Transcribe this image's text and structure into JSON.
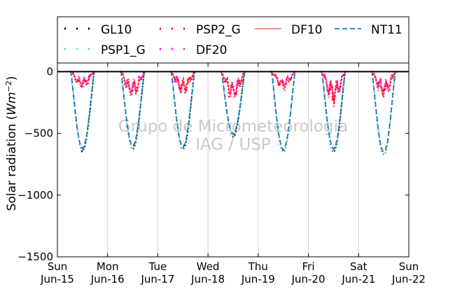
{
  "chart_data": {
    "type": "line",
    "ylabel_main": "Solar radiation (",
    "ylabel_math": "Wm",
    "ylabel_exp": "−2",
    "ylabel_close": ")",
    "ylim": [
      -1500,
      70
    ],
    "yticks": [
      0,
      -500,
      -1000,
      -1500
    ],
    "ytick_labels": [
      "0",
      "−500",
      "−1000",
      "−1500"
    ],
    "xlim": [
      "2014-06-15",
      "2014-06-22"
    ],
    "xticks": [
      {
        "day": "Sun",
        "date": "Jun-15"
      },
      {
        "day": "Mon",
        "date": "Jun-16"
      },
      {
        "day": "Tue",
        "date": "Jun-17"
      },
      {
        "day": "Wed",
        "date": "Jun-18"
      },
      {
        "day": "Thu",
        "date": "Jun-19"
      },
      {
        "day": "Fri",
        "date": "Jun-20"
      },
      {
        "day": "Sat",
        "date": "Jun-21"
      },
      {
        "day": "Sun",
        "date": "Jun-22"
      }
    ],
    "grid": "vertical",
    "legend_position": "top",
    "watermark": [
      "Grupo de Micrometeorologia",
      "IAG / USP"
    ],
    "series": [
      {
        "name": "GL10",
        "color": "#000000",
        "style": "dotted",
        "daily_peaks": [
          -640,
          -625,
          -630,
          -525,
          -655,
          -650,
          -675
        ]
      },
      {
        "name": "PSP1_G",
        "color": "#40e0d0",
        "style": "dotted",
        "daily_peaks": [
          -635,
          -620,
          -625,
          -520,
          -650,
          -645,
          -670
        ]
      },
      {
        "name": "PSP2_G",
        "color": "#ff0000",
        "style": "dotted",
        "daily_peaks": [
          -135,
          -205,
          -170,
          -215,
          -130,
          -240,
          -190
        ]
      },
      {
        "name": "DF20",
        "color": "#ff00ff",
        "style": "dotted",
        "daily_peaks": [
          -120,
          -190,
          -160,
          -200,
          -120,
          -225,
          -180
        ]
      },
      {
        "name": "DF10",
        "color": "#ff6666",
        "style": "solid",
        "daily_peaks": [
          -110,
          -180,
          -150,
          -190,
          -115,
          -215,
          -170
        ]
      },
      {
        "name": "NT11",
        "color": "#1f77b4",
        "style": "dashed",
        "daily_peaks": [
          -620,
          -600,
          -610,
          -505,
          -630,
          -625,
          -655
        ]
      }
    ]
  }
}
